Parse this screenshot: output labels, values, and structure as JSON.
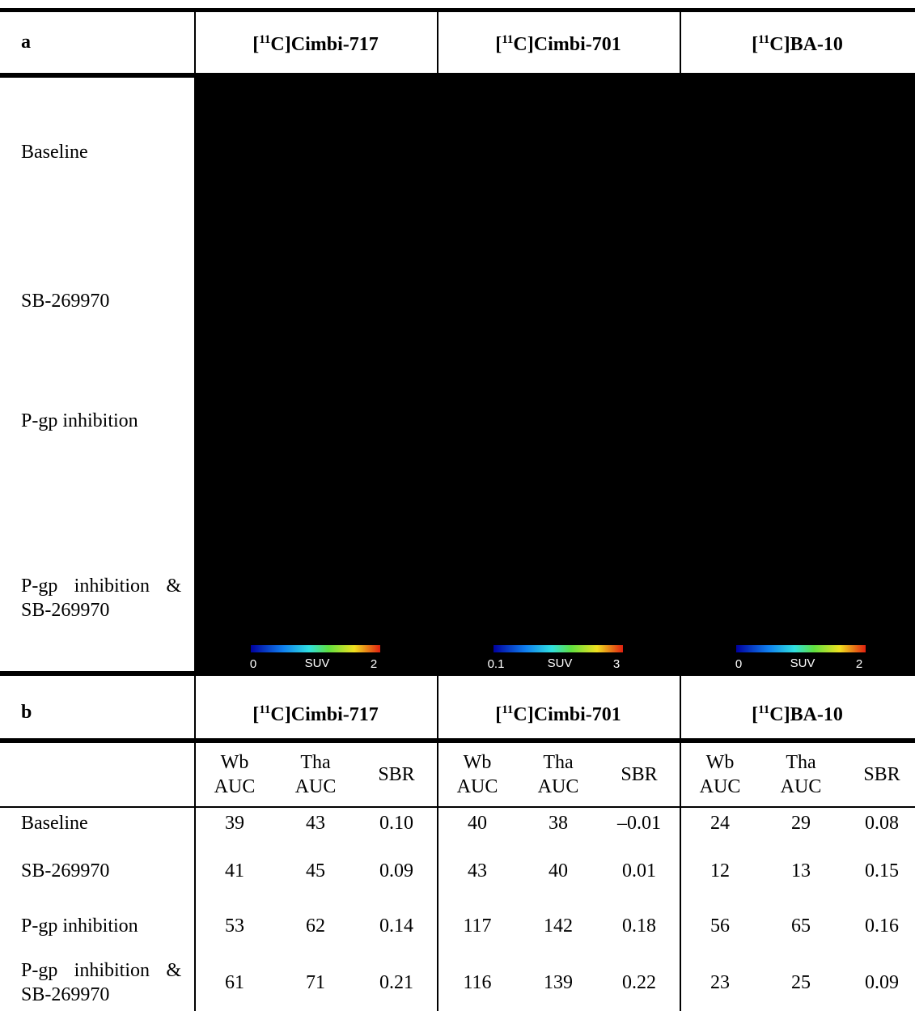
{
  "panel_a": {
    "label": "a",
    "tracers": [
      {
        "open": "[",
        "isotope": "11",
        "name": "C]Cimbi-717"
      },
      {
        "open": "[",
        "isotope": "11",
        "name": "C]Cimbi-701"
      },
      {
        "open": "[",
        "isotope": "11",
        "name": "C]BA-10"
      }
    ],
    "conditions": [
      "Baseline",
      "SB-269970",
      "P-gp inhibition",
      "P-gp inhibition & SB-269970"
    ],
    "colorbars": [
      {
        "min": "0",
        "unit": "SUV",
        "max": "2"
      },
      {
        "min": "0.1",
        "unit": "SUV",
        "max": "3"
      },
      {
        "min": "0",
        "unit": "SUV",
        "max": "2"
      }
    ]
  },
  "panel_b": {
    "label": "b",
    "tracers": [
      {
        "open": "[",
        "isotope": "11",
        "name": "C]Cimbi-717"
      },
      {
        "open": "[",
        "isotope": "11",
        "name": "C]Cimbi-701"
      },
      {
        "open": "[",
        "isotope": "11",
        "name": "C]BA-10"
      }
    ],
    "column_groups": [
      [
        "Wb AUC",
        "Tha AUC",
        "SBR"
      ],
      [
        "Wb AUC",
        "Tha AUC",
        "SBR"
      ],
      [
        "Wb AUC",
        "Tha AUC",
        "SBR"
      ]
    ],
    "rows": [
      {
        "condition": "Baseline",
        "cells": [
          "39",
          "43",
          "0.10",
          "40",
          "38",
          "–0.01",
          "24",
          "29",
          "0.08"
        ]
      },
      {
        "condition": "SB-269970",
        "cells": [
          "41",
          "45",
          "0.09",
          "43",
          "40",
          "0.01",
          "12",
          "13",
          "0.15"
        ]
      },
      {
        "condition": "P-gp inhibition",
        "cells": [
          "53",
          "62",
          "0.14",
          "117",
          "142",
          "0.18",
          "56",
          "65",
          "0.16"
        ]
      },
      {
        "condition": "P-gp inhibition & SB-269970",
        "cells": [
          "61",
          "71",
          "0.21",
          "116",
          "139",
          "0.22",
          "23",
          "25",
          "0.09"
        ]
      }
    ]
  }
}
